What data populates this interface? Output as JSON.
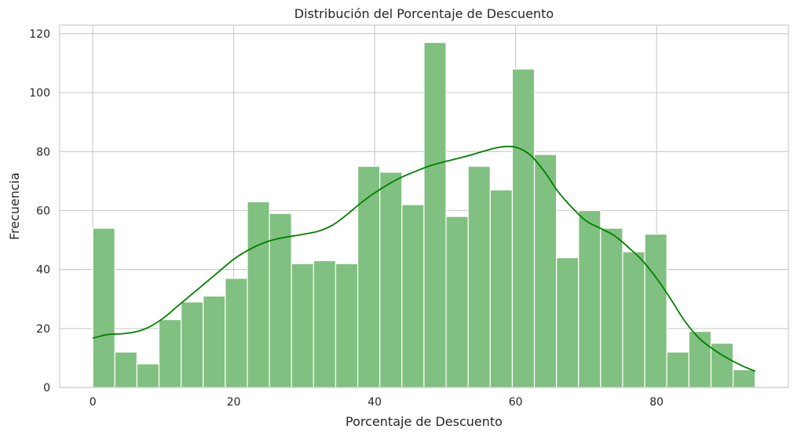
{
  "chart_data": {
    "type": "bar",
    "title": "Distribución del Porcentaje de Descuento",
    "xlabel": "Porcentaje de Descuento",
    "ylabel": "Frecuencia",
    "xlim": [
      -4.7,
      98.7
    ],
    "ylim": [
      0,
      122.9
    ],
    "xticks": [
      0,
      20,
      40,
      60,
      80
    ],
    "yticks": [
      0,
      20,
      40,
      60,
      80,
      100,
      120
    ],
    "grid": true,
    "bin_start": 0,
    "bin_width": 3.133,
    "values": [
      54,
      12,
      8,
      23,
      29,
      31,
      37,
      63,
      59,
      42,
      43,
      42,
      75,
      73,
      62,
      117,
      58,
      75,
      67,
      108,
      79,
      44,
      60,
      54,
      46,
      52,
      12,
      19,
      15,
      6
    ],
    "kde": {
      "x": [
        0,
        2,
        4,
        6,
        8,
        10,
        12,
        14,
        16,
        18,
        20,
        22,
        24,
        26,
        28,
        30,
        32,
        34,
        36,
        38,
        40,
        42,
        44,
        46,
        48,
        50,
        52,
        54,
        56,
        58,
        60,
        62,
        64,
        66,
        68,
        70,
        72,
        74,
        76,
        78,
        80,
        82,
        84,
        86,
        88,
        90,
        92,
        94
      ],
      "y": [
        16.7,
        17.9,
        18.2,
        18.8,
        20.5,
        23.5,
        27.5,
        31.5,
        35.5,
        39.5,
        43.5,
        46.5,
        48.8,
        50.3,
        51.2,
        52,
        53,
        55,
        58.5,
        62.5,
        66,
        69,
        71.5,
        73.5,
        75.3,
        76.6,
        77.8,
        79.1,
        80.5,
        81.6,
        81.5,
        79,
        73.5,
        66.5,
        61,
        56.5,
        54,
        51.5,
        47.5,
        43,
        37,
        30,
        22.5,
        16.8,
        13,
        10,
        7.5,
        5.5
      ]
    },
    "colors": {
      "bar_fill": "#80c080",
      "bar_stroke": "#ffffff",
      "kde_line": "#008000",
      "grid": "#cccccc",
      "frame": "#cccccc"
    }
  }
}
